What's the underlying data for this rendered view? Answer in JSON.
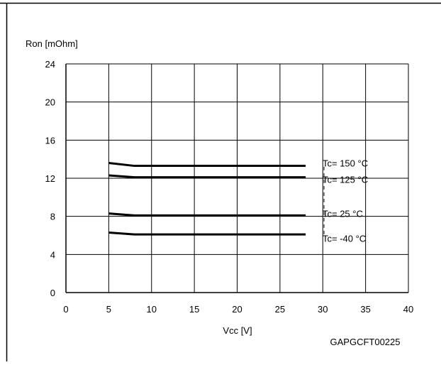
{
  "chart_data": {
    "type": "line",
    "title": "",
    "ylabel": "Ron [mOhm]",
    "xlabel": "Vcc [V]",
    "xlim": [
      0,
      40
    ],
    "ylim": [
      0,
      24
    ],
    "x_ticks": [
      0,
      5,
      10,
      15,
      20,
      25,
      30,
      35,
      40
    ],
    "y_ticks": [
      0,
      4,
      8,
      12,
      16,
      20,
      24
    ],
    "grid": true,
    "series": [
      {
        "name": "Tc= 150 °C",
        "x": [
          5,
          8,
          28
        ],
        "y": [
          13.6,
          13.3,
          13.3
        ],
        "label_y": 13.6
      },
      {
        "name": "Tc= 125 °C",
        "x": [
          5,
          8,
          28
        ],
        "y": [
          12.3,
          12.1,
          12.1
        ],
        "label_y": 11.9
      },
      {
        "name": "Tc= 25 °C",
        "x": [
          5,
          8,
          28
        ],
        "y": [
          8.3,
          8.1,
          8.1
        ],
        "label_y": 8.3
      },
      {
        "name": "Tc= -40 °C",
        "x": [
          5,
          8,
          28
        ],
        "y": [
          6.3,
          6.1,
          6.1
        ],
        "label_y": 5.7
      }
    ],
    "line_color": "#000000",
    "grid_color": "#000000"
  },
  "footer_code": "GAPGCFT00225"
}
